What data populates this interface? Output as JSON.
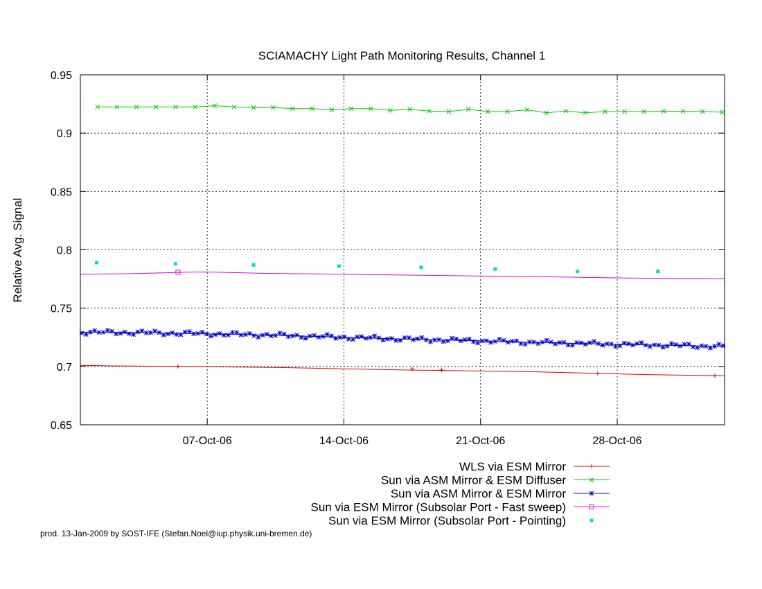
{
  "footer": "prod. 13-Jan-2009 by SOST-IFE (Stefan.Noel@iup.physik.uni-bremen.de)",
  "chart_data": {
    "type": "line",
    "title": "SCIAMACHY Light Path Monitoring Results, Channel 1",
    "xlabel": "",
    "ylabel": "Relative Avg. Signal",
    "xlim": [
      "2006-09-30T12:00",
      "2006-11-02T12:00"
    ],
    "ylim": [
      0.65,
      0.95
    ],
    "yticks": [
      0.65,
      0.7,
      0.75,
      0.8,
      0.85,
      0.9,
      0.95
    ],
    "ytick_labels": [
      "0.65",
      "0.7",
      "0.75",
      "0.8",
      "0.85",
      "0.9",
      "0.95"
    ],
    "xticks": [
      "2006-10-07",
      "2006-10-14",
      "2006-10-21",
      "2006-10-28"
    ],
    "xtick_labels": [
      "07-Oct-06",
      "14-Oct-06",
      "21-Oct-06",
      "28-Oct-06"
    ],
    "grid": true,
    "legend_position": "below-right",
    "series": [
      {
        "name": "WLS via ESM Mirror",
        "color": "#dd0000",
        "marker": "plus",
        "x": [
          "2006-09-30T12:00",
          "2006-10-02T00:00",
          "2006-10-05T12:00",
          "2006-10-11T00:00",
          "2006-10-17T00:00",
          "2006-10-23T12:00",
          "2006-10-29T12:00",
          "2006-11-02T12:00"
        ],
        "y": [
          0.701,
          0.7005,
          0.7,
          0.699,
          0.697,
          0.6955,
          0.693,
          0.692
        ],
        "markers_x": [
          "2006-10-05T12:00",
          "2006-10-17T12:00",
          "2006-10-19T00:00",
          "2006-10-27T00:00",
          "2006-11-02T00:00"
        ],
        "markers_y": [
          0.7,
          0.698,
          0.697,
          0.694,
          0.692
        ]
      },
      {
        "name": "Sun via ASM Mirror & ESM Diffuser",
        "color": "#00cc00",
        "marker": "cross",
        "x": [
          "2006-10-01T09:00",
          "2006-10-02T09:00",
          "2006-10-03T09:00",
          "2006-10-04T09:00",
          "2006-10-05T09:00",
          "2006-10-06T09:00",
          "2006-10-07T09:00",
          "2006-10-08T09:00",
          "2006-10-09T09:00",
          "2006-10-10T09:00",
          "2006-10-11T09:00",
          "2006-10-12T09:00",
          "2006-10-13T09:00",
          "2006-10-14T09:00",
          "2006-10-15T09:00",
          "2006-10-16T09:00",
          "2006-10-17T09:00",
          "2006-10-18T09:00",
          "2006-10-19T09:00",
          "2006-10-20T09:00",
          "2006-10-21T09:00",
          "2006-10-22T09:00",
          "2006-10-23T09:00",
          "2006-10-24T09:00",
          "2006-10-25T09:00",
          "2006-10-26T09:00",
          "2006-10-27T09:00",
          "2006-10-28T09:00",
          "2006-10-29T09:00",
          "2006-10-30T09:00",
          "2006-10-31T09:00",
          "2006-11-01T09:00",
          "2006-11-02T09:00"
        ],
        "y": [
          0.9225,
          0.9225,
          0.9225,
          0.9225,
          0.9225,
          0.9225,
          0.9235,
          0.9225,
          0.922,
          0.922,
          0.921,
          0.921,
          0.92,
          0.921,
          0.921,
          0.9195,
          0.9205,
          0.919,
          0.9185,
          0.9205,
          0.9185,
          0.9185,
          0.92,
          0.9175,
          0.919,
          0.9175,
          0.9185,
          0.9185,
          0.9185,
          0.9188,
          0.9188,
          0.9185,
          0.918
        ]
      },
      {
        "name": "Sun via ASM Mirror & ESM Mirror",
        "color": "#0000cc",
        "marker": "star",
        "x": [
          "2006-09-30T12:00",
          "2006-10-03T12:00",
          "2006-10-07T00:00",
          "2006-10-10T00:00",
          "2006-10-14T00:00",
          "2006-10-17T00:00",
          "2006-10-21T00:00",
          "2006-10-24T00:00",
          "2006-10-28T00:00",
          "2006-10-31T00:00",
          "2006-11-02T12:00"
        ],
        "y": [
          0.7295,
          0.729,
          0.728,
          0.727,
          0.725,
          0.7235,
          0.722,
          0.7205,
          0.719,
          0.718,
          0.7172
        ]
      },
      {
        "name": "Sun via ESM Mirror (Subsolar Port - Fast sweep)",
        "color": "#dd00dd",
        "marker": "box",
        "x": [
          "2006-09-30T12:00",
          "2006-10-03T00:00",
          "2006-10-06T00:00",
          "2006-10-07T00:00",
          "2006-10-10T00:00",
          "2006-10-14T00:00",
          "2006-10-18T00:00",
          "2006-10-21T00:00",
          "2006-10-24T00:00",
          "2006-10-27T00:00",
          "2006-10-30T00:00",
          "2006-11-02T12:00"
        ],
        "y": [
          0.779,
          0.7795,
          0.7808,
          0.781,
          0.7798,
          0.779,
          0.7782,
          0.7775,
          0.777,
          0.7762,
          0.7755,
          0.7752
        ],
        "markers_x": [
          "2006-10-05T12:00"
        ],
        "markers_y": [
          0.7808
        ]
      },
      {
        "name": "Sun via ESM Mirror (Subsolar Port - Pointing)",
        "color": "#00dddd",
        "marker": "filled-square",
        "x": [
          "2006-10-01T08:00",
          "2006-10-05T09:00",
          "2006-10-09T09:00",
          "2006-10-13T18:00",
          "2006-10-17T23:00",
          "2006-10-21T18:00",
          "2006-10-25T23:00",
          "2006-10-30T02:00"
        ],
        "y": [
          0.789,
          0.788,
          0.787,
          0.786,
          0.785,
          0.7835,
          0.7815,
          0.7815
        ]
      }
    ]
  }
}
